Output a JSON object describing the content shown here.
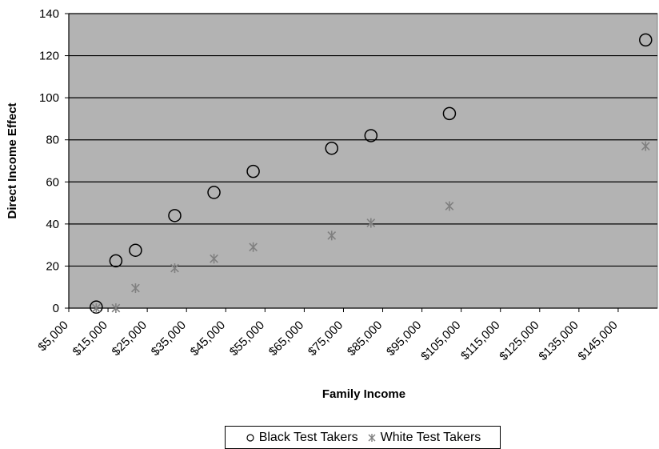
{
  "chart_data": {
    "type": "scatter",
    "xlabel": "Family Income",
    "ylabel": "Direct Income Effect",
    "xlim": [
      5000,
      155000
    ],
    "ylim": [
      0,
      140
    ],
    "x_ticks": [
      5000,
      15000,
      25000,
      35000,
      45000,
      55000,
      65000,
      75000,
      85000,
      95000,
      105000,
      115000,
      125000,
      135000,
      145000
    ],
    "x_tick_labels": [
      "$5,000",
      "$15,000",
      "$25,000",
      "$35,000",
      "$45,000",
      "$55,000",
      "$65,000",
      "$75,000",
      "$85,000",
      "$95,000",
      "$105,000",
      "$115,000",
      "$125,000",
      "$135,000",
      "$145,000"
    ],
    "y_ticks": [
      0,
      20,
      40,
      60,
      80,
      100,
      120,
      140
    ],
    "y_tick_labels": [
      "0",
      "20",
      "40",
      "60",
      "80",
      "100",
      "120",
      "140"
    ],
    "grid": "horizontal",
    "plot_background": "#b3b3b3",
    "legend_position": "bottom",
    "series": [
      {
        "name": "Black Test Takers",
        "marker": "circle",
        "color": "#000000",
        "x": [
          12000,
          17000,
          22000,
          32000,
          42000,
          52000,
          72000,
          82000,
          102000,
          152000
        ],
        "y": [
          0.5,
          22.5,
          27.5,
          44,
          55,
          65,
          76,
          82,
          92.5,
          127.5
        ]
      },
      {
        "name": "White Test Takers",
        "marker": "asterisk",
        "color": "#808080",
        "x": [
          12000,
          17000,
          22000,
          32000,
          42000,
          52000,
          72000,
          82000,
          102000,
          152000
        ],
        "y": [
          0,
          0,
          9.5,
          19,
          23.5,
          29,
          34.5,
          40.5,
          48.5,
          77
        ]
      }
    ]
  }
}
